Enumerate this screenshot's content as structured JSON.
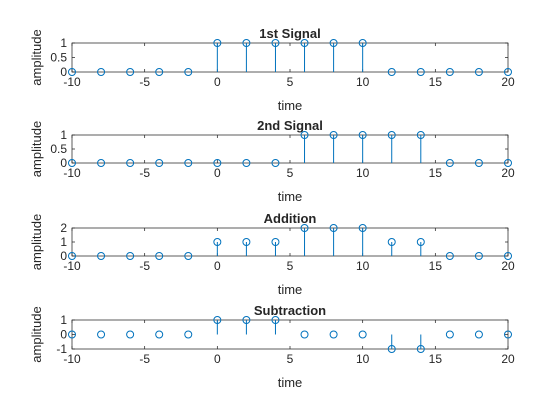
{
  "figure": {
    "background": "#ffffff",
    "axis_color": "#262626",
    "series_color": "#0072bd"
  },
  "chart_data": [
    {
      "type": "stem",
      "title": "1st Signal",
      "xlabel": "time",
      "ylabel": "amplitude",
      "xlim": [
        -10,
        20
      ],
      "ylim": [
        0,
        1
      ],
      "xticks": [
        -10,
        -5,
        0,
        5,
        10,
        15,
        20
      ],
      "xtick_labels": [
        "-10",
        "-5",
        "0",
        "5",
        "10",
        "15",
        "20"
      ],
      "yticks": [
        0,
        0.5,
        1
      ],
      "ytick_labels": [
        "0",
        "0.5",
        "1"
      ],
      "x": [
        -10,
        -8,
        -6,
        -4,
        -2,
        0,
        2,
        4,
        6,
        8,
        10,
        12,
        14,
        16,
        18,
        20
      ],
      "y": [
        0,
        0,
        0,
        0,
        0,
        1,
        1,
        1,
        1,
        1,
        1,
        0,
        0,
        0,
        0,
        0
      ]
    },
    {
      "type": "stem",
      "title": "2nd Signal",
      "xlabel": "time",
      "ylabel": "amplitude",
      "xlim": [
        -10,
        20
      ],
      "ylim": [
        0,
        1
      ],
      "xticks": [
        -10,
        -5,
        0,
        5,
        10,
        15,
        20
      ],
      "xtick_labels": [
        "-10",
        "-5",
        "0",
        "5",
        "10",
        "15",
        "20"
      ],
      "yticks": [
        0,
        0.5,
        1
      ],
      "ytick_labels": [
        "0",
        "0.5",
        "1"
      ],
      "x": [
        -10,
        -8,
        -6,
        -4,
        -2,
        0,
        2,
        4,
        6,
        8,
        10,
        12,
        14,
        16,
        18,
        20
      ],
      "y": [
        0,
        0,
        0,
        0,
        0,
        0,
        0,
        0,
        1,
        1,
        1,
        1,
        1,
        0,
        0,
        0
      ]
    },
    {
      "type": "stem",
      "title": "Addition",
      "xlabel": "time",
      "ylabel": "amplitude",
      "xlim": [
        -10,
        20
      ],
      "ylim": [
        0,
        2
      ],
      "xticks": [
        -10,
        -5,
        0,
        5,
        10,
        15,
        20
      ],
      "xtick_labels": [
        "-10",
        "-5",
        "0",
        "5",
        "10",
        "15",
        "20"
      ],
      "yticks": [
        0,
        1,
        2
      ],
      "ytick_labels": [
        "0",
        "1",
        "2"
      ],
      "x": [
        -10,
        -8,
        -6,
        -4,
        -2,
        0,
        2,
        4,
        6,
        8,
        10,
        12,
        14,
        16,
        18,
        20
      ],
      "y": [
        0,
        0,
        0,
        0,
        0,
        1,
        1,
        1,
        2,
        2,
        2,
        1,
        1,
        0,
        0,
        0
      ]
    },
    {
      "type": "stem",
      "title": "Subtraction",
      "xlabel": "time",
      "ylabel": "amplitude",
      "xlim": [
        -10,
        20
      ],
      "ylim": [
        -1,
        1
      ],
      "xticks": [
        -10,
        -5,
        0,
        5,
        10,
        15,
        20
      ],
      "xtick_labels": [
        "-10",
        "-5",
        "0",
        "5",
        "10",
        "15",
        "20"
      ],
      "yticks": [
        -1,
        0,
        1
      ],
      "ytick_labels": [
        "-1",
        "0",
        "1"
      ],
      "x": [
        -10,
        -8,
        -6,
        -4,
        -2,
        0,
        2,
        4,
        6,
        8,
        10,
        12,
        14,
        16,
        18,
        20
      ],
      "y": [
        0,
        0,
        0,
        0,
        0,
        1,
        1,
        1,
        0,
        0,
        0,
        -1,
        -1,
        0,
        0,
        0
      ]
    }
  ]
}
